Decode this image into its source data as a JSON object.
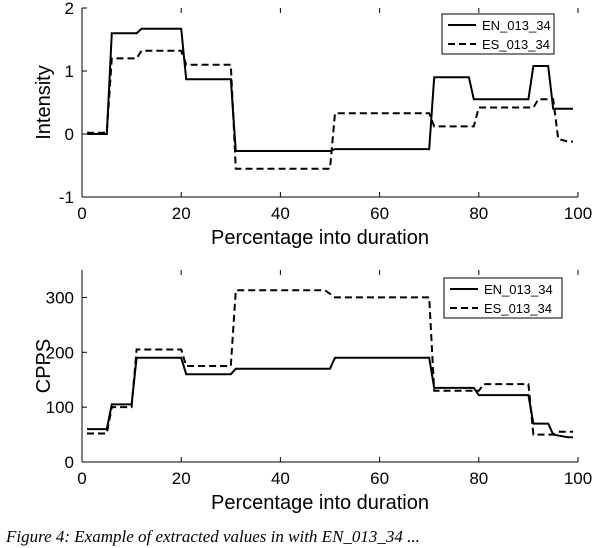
{
  "chart_data": [
    {
      "type": "line",
      "xlabel": "Percentage into duration",
      "ylabel": "Intensity",
      "xlim": [
        0,
        100
      ],
      "ylim": [
        -1,
        2
      ],
      "xticks": [
        0,
        20,
        40,
        60,
        80,
        100
      ],
      "yticks": [
        -1,
        0,
        1,
        2
      ],
      "legend_position": "top-right",
      "series": [
        {
          "name": "EN_013_34",
          "style": "solid",
          "x": [
            1,
            5,
            6,
            11,
            12,
            20,
            21,
            30,
            31,
            50,
            51,
            70,
            71,
            78,
            79,
            90,
            91,
            94,
            95,
            98,
            99
          ],
          "y": [
            0,
            0,
            1.6,
            1.6,
            1.67,
            1.67,
            0.87,
            0.87,
            -0.27,
            -0.27,
            -0.24,
            -0.24,
            0.9,
            0.9,
            0.55,
            0.55,
            1.08,
            1.08,
            0.4,
            0.4,
            0.4
          ]
        },
        {
          "name": "ES_013_34",
          "style": "dashed",
          "x": [
            1,
            5,
            6,
            11,
            12,
            20,
            21,
            30,
            31,
            50,
            51,
            70,
            71,
            79,
            80,
            91,
            92,
            95,
            96,
            98,
            99
          ],
          "y": [
            0.02,
            0.02,
            1.2,
            1.2,
            1.32,
            1.32,
            1.1,
            1.1,
            -0.55,
            -0.55,
            0.33,
            0.33,
            0.12,
            0.12,
            0.42,
            0.42,
            0.55,
            0.55,
            -0.08,
            -0.12,
            -0.12
          ]
        }
      ]
    },
    {
      "type": "line",
      "xlabel": "Percentage into duration",
      "ylabel": "CPPS",
      "xlim": [
        0,
        100
      ],
      "ylim": [
        0,
        350
      ],
      "xticks": [
        0,
        20,
        40,
        60,
        80,
        100
      ],
      "yticks": [
        0,
        100,
        200,
        300
      ],
      "legend_position": "top-right",
      "series": [
        {
          "name": "EN_013_34",
          "style": "solid",
          "x": [
            1,
            5,
            6,
            10,
            11,
            20,
            21,
            30,
            31,
            50,
            51,
            70,
            71,
            79,
            80,
            90,
            91,
            94,
            95,
            98,
            99
          ],
          "y": [
            60,
            60,
            105,
            105,
            190,
            190,
            160,
            160,
            170,
            170,
            190,
            190,
            135,
            135,
            122,
            122,
            70,
            70,
            50,
            45,
            45
          ]
        },
        {
          "name": "ES_013_34",
          "style": "dashed",
          "x": [
            1,
            5,
            6,
            10,
            11,
            20,
            21,
            30,
            31,
            49,
            51,
            70,
            71,
            80,
            81,
            90,
            91,
            95,
            96,
            98,
            99
          ],
          "y": [
            52,
            52,
            100,
            100,
            205,
            205,
            175,
            175,
            313,
            313,
            300,
            300,
            130,
            130,
            142,
            142,
            50,
            50,
            55,
            55,
            55
          ]
        }
      ]
    }
  ],
  "caption": "Figure 4:  Example of extracted values in with EN_013_34 ..."
}
